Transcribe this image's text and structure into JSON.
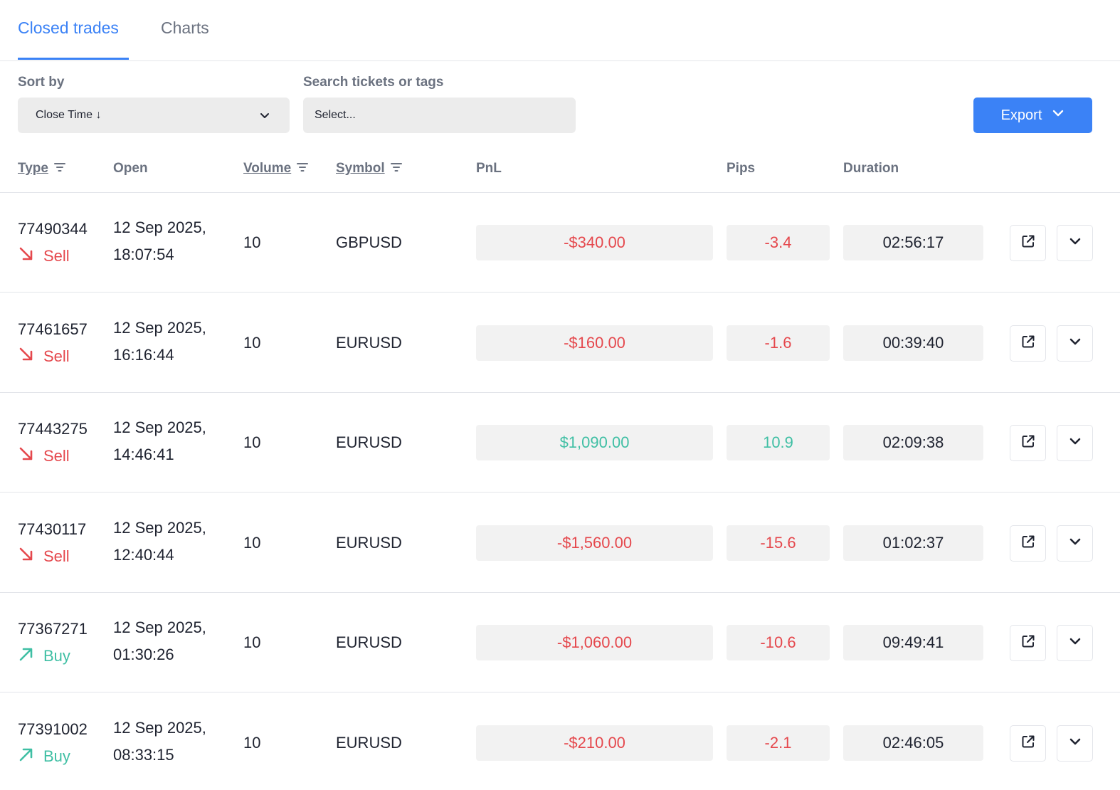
{
  "tabs": [
    {
      "label": "Closed trades",
      "active": true
    },
    {
      "label": "Charts",
      "active": false
    }
  ],
  "filters": {
    "sort_label": "Sort by",
    "sort_value": "Close Time ↓",
    "search_label": "Search tickets or tags",
    "search_placeholder": "Select..."
  },
  "export_label": "Export",
  "columns": {
    "type": "Type",
    "open": "Open",
    "volume": "Volume",
    "symbol": "Symbol",
    "pnl": "PnL",
    "pips": "Pips",
    "duration": "Duration"
  },
  "colors": {
    "accent": "#3b82f6",
    "negative": "#e5484d",
    "positive": "#3fbfa4"
  },
  "rows": [
    {
      "ticket": "77490344",
      "side": "Sell",
      "open_date": "12 Sep 2025,",
      "open_time": "18:07:54",
      "volume": "10",
      "symbol": "GBPUSD",
      "pnl": "-$340.00",
      "pips": "-3.4",
      "duration": "02:56:17",
      "positive": false
    },
    {
      "ticket": "77461657",
      "side": "Sell",
      "open_date": "12 Sep 2025,",
      "open_time": "16:16:44",
      "volume": "10",
      "symbol": "EURUSD",
      "pnl": "-$160.00",
      "pips": "-1.6",
      "duration": "00:39:40",
      "positive": false
    },
    {
      "ticket": "77443275",
      "side": "Sell",
      "open_date": "12 Sep 2025,",
      "open_time": "14:46:41",
      "volume": "10",
      "symbol": "EURUSD",
      "pnl": "$1,090.00",
      "pips": "10.9",
      "duration": "02:09:38",
      "positive": true
    },
    {
      "ticket": "77430117",
      "side": "Sell",
      "open_date": "12 Sep 2025,",
      "open_time": "12:40:44",
      "volume": "10",
      "symbol": "EURUSD",
      "pnl": "-$1,560.00",
      "pips": "-15.6",
      "duration": "01:02:37",
      "positive": false
    },
    {
      "ticket": "77367271",
      "side": "Buy",
      "open_date": "12 Sep 2025,",
      "open_time": "01:30:26",
      "volume": "10",
      "symbol": "EURUSD",
      "pnl": "-$1,060.00",
      "pips": "-10.6",
      "duration": "09:49:41",
      "positive": false
    },
    {
      "ticket": "77391002",
      "side": "Buy",
      "open_date": "12 Sep 2025,",
      "open_time": "08:33:15",
      "volume": "10",
      "symbol": "EURUSD",
      "pnl": "-$210.00",
      "pips": "-2.1",
      "duration": "02:46:05",
      "positive": false
    }
  ]
}
